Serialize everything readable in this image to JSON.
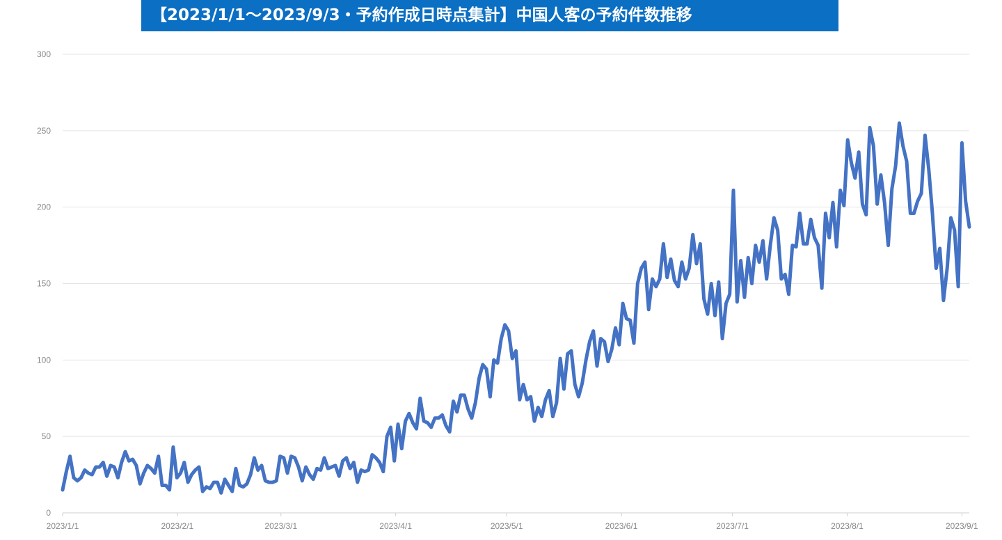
{
  "header": {
    "title": "【2023/1/1～2023/9/3・予約作成日時点集計】中国人客の予約件数推移"
  },
  "chart_data": {
    "type": "line",
    "title": "【2023/1/1～2023/9/3・予約作成日時点集計】中国人客の予約件数推移",
    "xlabel": "",
    "ylabel": "",
    "ylim": [
      0,
      300
    ],
    "y_ticks": [
      0,
      50,
      100,
      150,
      200,
      250,
      300
    ],
    "x_tick_labels": [
      "2023/1/1",
      "2023/2/1",
      "2023/3/1",
      "2023/4/1",
      "2023/5/1",
      "2023/6/1",
      "2023/7/1",
      "2023/8/1",
      "2023/9/1"
    ],
    "grid": true,
    "legend": "none",
    "line_color": "#4472c4",
    "x_start": "2023/1/1",
    "x_end": "2023/9/3",
    "series": [
      {
        "values": [
          15,
          27,
          37,
          23,
          21,
          23,
          28,
          26,
          25,
          30,
          30,
          33,
          24,
          31,
          30,
          23,
          33,
          40,
          34,
          35,
          31,
          19,
          26,
          31,
          29,
          26,
          37,
          18,
          18,
          15,
          43,
          23,
          26,
          33,
          20,
          25,
          28,
          30,
          14,
          17,
          16,
          20,
          20,
          13,
          22,
          18,
          14,
          29,
          18,
          17,
          19,
          25,
          36,
          28,
          31,
          21,
          20,
          20,
          21,
          37,
          36,
          26,
          37,
          36,
          30,
          21,
          30,
          25,
          22,
          29,
          28,
          36,
          29,
          30,
          31,
          24,
          34,
          36,
          29,
          33,
          20,
          28,
          27,
          28,
          38,
          36,
          33,
          27,
          50,
          56,
          34,
          58,
          42,
          60,
          65,
          59,
          55,
          75,
          60,
          59,
          56,
          62,
          62,
          64,
          57,
          53,
          73,
          66,
          77,
          77,
          68,
          62,
          72,
          88,
          97,
          94,
          76,
          100,
          98,
          114,
          123,
          119,
          101,
          106,
          74,
          84,
          74,
          76,
          60,
          69,
          63,
          74,
          80,
          63,
          72,
          101,
          81,
          104,
          106,
          84,
          76,
          85,
          100,
          112,
          119,
          96,
          114,
          112,
          99,
          107,
          121,
          110,
          137,
          127,
          126,
          111,
          150,
          160,
          164,
          133,
          153,
          148,
          153,
          176,
          154,
          166,
          152,
          148,
          164,
          153,
          160,
          182,
          163,
          176,
          140,
          130,
          150,
          129,
          151,
          114,
          137,
          143,
          211,
          138,
          165,
          141,
          167,
          150,
          175,
          164,
          178,
          153,
          175,
          193,
          185,
          153,
          156,
          143,
          175,
          174,
          196,
          176,
          176,
          192,
          180,
          175,
          147,
          196,
          180,
          203,
          174,
          211,
          201,
          244,
          229,
          219,
          236,
          202,
          195,
          252,
          240,
          202,
          221,
          203,
          175,
          212,
          227,
          255,
          240,
          230,
          196,
          196,
          204,
          209,
          247,
          225,
          196,
          160,
          173,
          139,
          160,
          193,
          185,
          148,
          242,
          204,
          187
        ]
      }
    ]
  }
}
